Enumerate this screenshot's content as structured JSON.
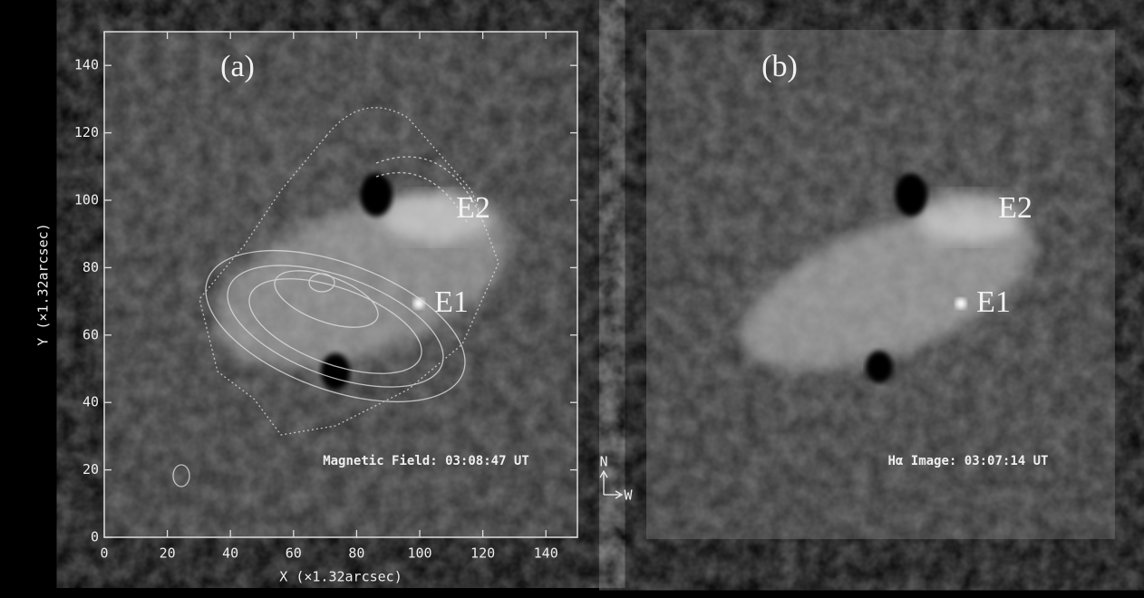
{
  "panels": [
    {
      "label": "(a)",
      "features": [
        "E2",
        "E1"
      ],
      "caption": "Magnetic Field: 03:08:47 UT"
    },
    {
      "label": "(b)",
      "features": [
        "E2",
        "E1"
      ],
      "caption": "Hα Image: 03:07:14 UT"
    }
  ],
  "axes": {
    "xlabel": "X (×1.32arcsec)",
    "ylabel": "Y (×1.32arcsec)",
    "xlim": [
      0,
      150
    ],
    "ylim": [
      0,
      150
    ],
    "xticks": [
      0,
      20,
      40,
      60,
      80,
      100,
      120,
      140
    ],
    "yticks": [
      0,
      20,
      40,
      60,
      80,
      100,
      120,
      140
    ]
  },
  "compass": {
    "north": "N",
    "west": "W"
  }
}
